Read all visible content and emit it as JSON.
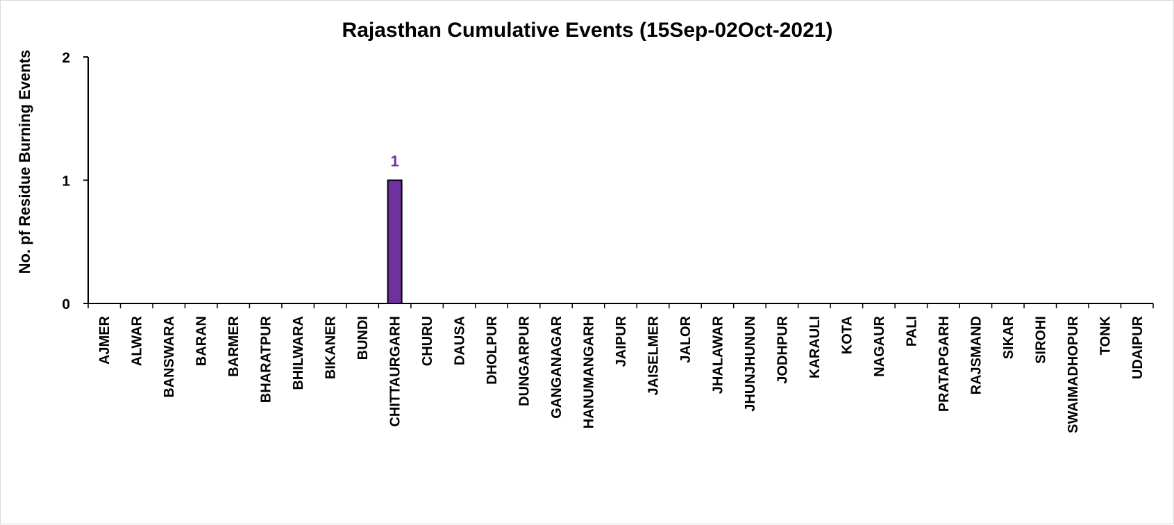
{
  "chart_data": {
    "type": "bar",
    "title": "Rajasthan Cumulative Events (15Sep-02Oct-2021)",
    "xlabel": "",
    "ylabel": "No. pf Residue Burning Events",
    "ylim": [
      0,
      2
    ],
    "yticks": [
      0,
      1,
      2
    ],
    "grid": false,
    "legend": "none",
    "bar_color": "#7030a0",
    "label_color": "#7030a0",
    "categories": [
      "AJMER",
      "ALWAR",
      "BANSWARA",
      "BARAN",
      "BARMER",
      "BHARATPUR",
      "BHILWARA",
      "BIKANER",
      "BUNDI",
      "CHITTAURGARH",
      "CHURU",
      "DAUSA",
      "DHOLPUR",
      "DUNGARPUR",
      "GANGANAGAR",
      "HANUMANGARH",
      "JAIPUR",
      "JAISELMER",
      "JALOR",
      "JHALAWAR",
      "JHUNJHUNUN",
      "JODHPUR",
      "KARAULI",
      "KOTA",
      "NAGAUR",
      "PALI",
      "PRATAPGARH",
      "RAJSMAND",
      "SIKAR",
      "SIROHI",
      "SWAIMADHOPUR",
      "TONK",
      "UDAIPUR"
    ],
    "values": [
      0,
      0,
      0,
      0,
      0,
      0,
      0,
      0,
      0,
      1,
      0,
      0,
      0,
      0,
      0,
      0,
      0,
      0,
      0,
      0,
      0,
      0,
      0,
      0,
      0,
      0,
      0,
      0,
      0,
      0,
      0,
      0,
      0
    ]
  }
}
